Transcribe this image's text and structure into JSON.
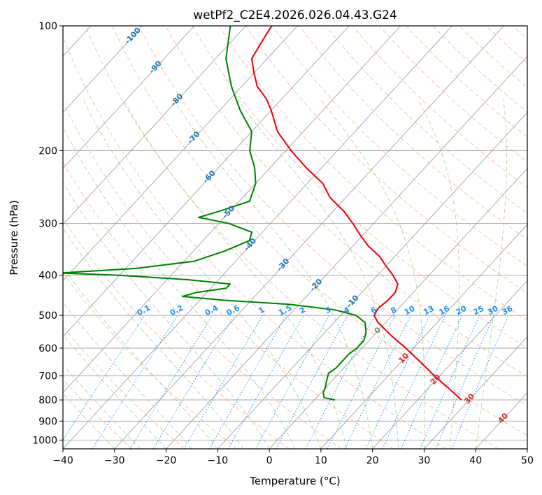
{
  "chart_data": {
    "type": "line",
    "subtype": "skew-t log-p diagram",
    "title": "wetPf2_C2E4.2026.026.04.43.G24",
    "xlabel": "Temperature (°C)",
    "ylabel": "Pressure (hPa)",
    "xlim": [
      -40,
      50
    ],
    "ylim": [
      1050,
      100
    ],
    "x_ticks": [
      "−40",
      "−30",
      "−20",
      "−10",
      "0",
      "10",
      "20",
      "30",
      "40",
      "50"
    ],
    "y_ticks": [
      {
        "p": 100,
        "label": "100"
      },
      {
        "p": 200,
        "label": "200"
      },
      {
        "p": 300,
        "label": "300"
      },
      {
        "p": 400,
        "label": "400"
      },
      {
        "p": 500,
        "label": "500"
      },
      {
        "p": 600,
        "label": "600"
      },
      {
        "p": 700,
        "label": "700"
      },
      {
        "p": 800,
        "label": "800"
      },
      {
        "p": 900,
        "label": "900"
      },
      {
        "p": 1000,
        "label": "1000"
      }
    ],
    "series": [
      {
        "name": "temperature",
        "color": "#e8000b",
        "points": [
          [
            800,
            28.5
          ],
          [
            760,
            24.9
          ],
          [
            700,
            19
          ],
          [
            650,
            14
          ],
          [
            600,
            8.5
          ],
          [
            560,
            3.5
          ],
          [
            520,
            -1.5
          ],
          [
            500,
            -3.5
          ],
          [
            480,
            -4
          ],
          [
            460,
            -3.5
          ],
          [
            440,
            -3.5
          ],
          [
            420,
            -4.5
          ],
          [
            400,
            -7
          ],
          [
            380,
            -10
          ],
          [
            360,
            -13
          ],
          [
            340,
            -17
          ],
          [
            320,
            -20.5
          ],
          [
            300,
            -24
          ],
          [
            280,
            -28
          ],
          [
            260,
            -33
          ],
          [
            240,
            -37
          ],
          [
            220,
            -43
          ],
          [
            200,
            -49
          ],
          [
            180,
            -55
          ],
          [
            160,
            -60
          ],
          [
            150,
            -63
          ],
          [
            140,
            -67
          ],
          [
            130,
            -70
          ],
          [
            120,
            -73
          ],
          [
            110,
            -74
          ],
          [
            100,
            -75
          ]
        ]
      },
      {
        "name": "dewpoint",
        "color": "#008000",
        "points": [
          [
            800,
            4
          ],
          [
            790,
            1.5
          ],
          [
            770,
            0.5
          ],
          [
            750,
            0
          ],
          [
            720,
            -1
          ],
          [
            690,
            -2
          ],
          [
            670,
            -1.5
          ],
          [
            650,
            -1.5
          ],
          [
            620,
            -1.5
          ],
          [
            600,
            -1
          ],
          [
            575,
            -1
          ],
          [
            550,
            -2
          ],
          [
            520,
            -4
          ],
          [
            500,
            -7
          ],
          [
            485,
            -12
          ],
          [
            470,
            -22
          ],
          [
            460,
            -35
          ],
          [
            450,
            -44
          ],
          [
            440,
            -42
          ],
          [
            430,
            -37
          ],
          [
            420,
            -37
          ],
          [
            410,
            -46
          ],
          [
            400,
            -60
          ],
          [
            395,
            -72
          ],
          [
            385,
            -58
          ],
          [
            370,
            -48
          ],
          [
            350,
            -44
          ],
          [
            330,
            -41
          ],
          [
            315,
            -42
          ],
          [
            300,
            -48
          ],
          [
            290,
            -55
          ],
          [
            280,
            -52
          ],
          [
            265,
            -48
          ],
          [
            240,
            -50
          ],
          [
            220,
            -53
          ],
          [
            200,
            -57
          ],
          [
            180,
            -60
          ],
          [
            160,
            -66
          ],
          [
            140,
            -72
          ],
          [
            120,
            -78
          ],
          [
            100,
            -83
          ]
        ]
      }
    ],
    "isotherm_labels": [
      "-100",
      "-90",
      "-80",
      "-70",
      "-60",
      "-50",
      "-40",
      "-30",
      "-20",
      "-10"
    ],
    "isotherm_values": [
      -100,
      -90,
      -80,
      -70,
      -60,
      -50,
      -40,
      -30,
      -20,
      -10
    ],
    "mixing_ratio_labels": [
      "0.1",
      "0.2",
      "0.4",
      "0.6",
      "1",
      "1.5",
      "2",
      "3",
      "4",
      "6",
      "8",
      "10",
      "13",
      "16",
      "20",
      "25",
      "30",
      "36"
    ],
    "mixing_ratio_values": [
      0.1,
      0.2,
      0.4,
      0.6,
      1,
      1.5,
      2,
      3,
      4,
      6,
      8,
      10,
      13,
      16,
      20,
      25,
      30,
      36
    ],
    "warm_isotherm_labels": [
      "0",
      "10",
      "20",
      "30",
      "40"
    ],
    "warm_isotherm_values": [
      0,
      10,
      20,
      30,
      40
    ],
    "colors": {
      "isotherm_labels": "#1f77b4",
      "mixing_ratio": "#1e90ff",
      "warm_isotherm_zero": "#808080",
      "warm_isotherm_pos": "#d62728",
      "dry_adiabat": "#ffa07a",
      "moist_adiabat": "#98c98f",
      "skew_isotherm": "#999999",
      "grid": "#aaaaaa"
    }
  }
}
